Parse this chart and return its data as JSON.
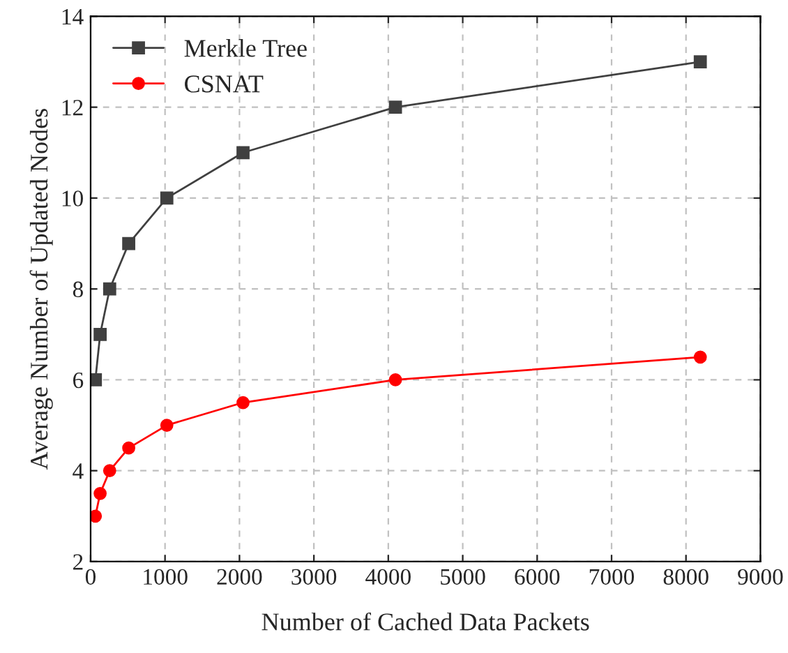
{
  "chart_data": {
    "type": "line",
    "xlabel": "Number of Cached Data Packets",
    "ylabel": "Average Number of Updated Nodes",
    "xlim": [
      0,
      9000
    ],
    "xticks": [
      0,
      1000,
      2000,
      3000,
      4000,
      5000,
      6000,
      7000,
      8000,
      9000
    ],
    "ylim": [
      2,
      14
    ],
    "yticks": [
      2,
      4,
      6,
      8,
      10,
      12,
      14
    ],
    "grid": true,
    "legend": "top left",
    "series": [
      {
        "name": "Merkle Tree",
        "color": "#404040",
        "marker": "square",
        "x": [
          64,
          128,
          256,
          512,
          1024,
          2048,
          4096,
          8192
        ],
        "values": [
          6,
          7,
          8,
          9,
          10,
          11,
          12,
          13
        ]
      },
      {
        "name": "CSNAT",
        "color": "#ff0000",
        "marker": "circle",
        "x": [
          64,
          128,
          256,
          512,
          1024,
          2048,
          4096,
          8192
        ],
        "values": [
          3,
          3.5,
          4,
          4.5,
          5,
          5.5,
          6,
          6.5
        ]
      }
    ]
  }
}
